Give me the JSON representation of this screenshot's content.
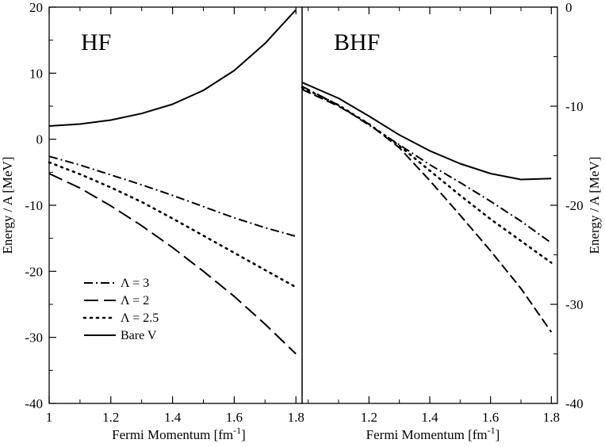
{
  "chart_data": [
    {
      "type": "line",
      "panel_label": "HF",
      "xlabel": "Fermi Momentum [fm",
      "xlabel_sup": "-1",
      "xlabel_end": "]",
      "ylabel": "Energy / A [MeV]",
      "xlim": [
        1.0,
        1.82
      ],
      "ylim": [
        -40,
        20
      ],
      "xticks": [
        1,
        1.2,
        1.4,
        1.6,
        1.8
      ],
      "xtick_labels": [
        "1",
        "1.2",
        "1.4",
        "1.6",
        "1.8"
      ],
      "yticks": [
        -40,
        -30,
        -20,
        -10,
        0,
        10,
        20
      ],
      "ytick_labels": [
        "-40",
        "-30",
        "-20",
        "-10",
        "0",
        "10",
        "20"
      ],
      "y_axis_side": "left",
      "grid": false,
      "legend_position": "bottom-left",
      "series": [
        {
          "name": "Λ = 3",
          "style": "dash-dot",
          "x": [
            1.0,
            1.1,
            1.2,
            1.3,
            1.4,
            1.5,
            1.6,
            1.7,
            1.8
          ],
          "y": [
            -2.6,
            -3.9,
            -5.4,
            -6.9,
            -8.5,
            -10.2,
            -11.9,
            -13.4,
            -14.7
          ]
        },
        {
          "name": "Λ = 2",
          "style": "long-dash",
          "x": [
            1.0,
            1.1,
            1.2,
            1.3,
            1.4,
            1.5,
            1.6,
            1.7,
            1.8
          ],
          "y": [
            -5.2,
            -7.4,
            -10.1,
            -13.1,
            -16.4,
            -20.0,
            -23.8,
            -28.0,
            -32.5
          ]
        },
        {
          "name": "Λ = 2.5",
          "style": "dotted",
          "x": [
            1.0,
            1.1,
            1.2,
            1.3,
            1.4,
            1.5,
            1.6,
            1.7,
            1.8
          ],
          "y": [
            -3.5,
            -5.3,
            -7.3,
            -9.5,
            -12.0,
            -14.6,
            -17.2,
            -19.8,
            -22.4
          ]
        },
        {
          "name": "Bare V",
          "style": "solid",
          "x": [
            1.0,
            1.1,
            1.2,
            1.3,
            1.4,
            1.5,
            1.6,
            1.7,
            1.8
          ],
          "y": [
            2.0,
            2.3,
            2.9,
            3.9,
            5.3,
            7.4,
            10.4,
            14.5,
            19.6
          ]
        }
      ]
    },
    {
      "type": "line",
      "panel_label": "BHF",
      "xlabel": "Fermi Momentum [fm",
      "xlabel_sup": "-1",
      "xlabel_end": "]",
      "ylabel": "Energy / A [MeV]",
      "xlim": [
        0.98,
        1.82
      ],
      "ylim": [
        -40,
        0
      ],
      "xticks": [
        1.2,
        1.4,
        1.6,
        1.8
      ],
      "xtick_labels": [
        "1.2",
        "1.4",
        "1.6",
        "1.8"
      ],
      "yticks": [
        -40,
        -30,
        -20,
        -10,
        0
      ],
      "ytick_labels": [
        "-40",
        "-30",
        "-20",
        "-10",
        "0"
      ],
      "y_axis_side": "right",
      "grid": false,
      "series": [
        {
          "name": "Λ = 3",
          "style": "dash-dot",
          "x": [
            0.98,
            1.1,
            1.2,
            1.3,
            1.4,
            1.5,
            1.6,
            1.7,
            1.8
          ],
          "y": [
            -8.0,
            -9.9,
            -11.9,
            -13.9,
            -15.9,
            -17.7,
            -19.6,
            -21.6,
            -23.8
          ]
        },
        {
          "name": "Λ = 2",
          "style": "dashed",
          "x": [
            0.98,
            1.1,
            1.2,
            1.3,
            1.4,
            1.5,
            1.6,
            1.7,
            1.8
          ],
          "y": [
            -8.3,
            -10.0,
            -11.8,
            -14.2,
            -17.5,
            -21.0,
            -24.6,
            -28.4,
            -32.8
          ]
        },
        {
          "name": "Λ = 2.5",
          "style": "dotted",
          "x": [
            0.98,
            1.1,
            1.2,
            1.3,
            1.4,
            1.5,
            1.6,
            1.7,
            1.8
          ],
          "y": [
            -8.1,
            -9.9,
            -11.8,
            -14.0,
            -16.5,
            -19.0,
            -21.4,
            -23.6,
            -25.8
          ]
        },
        {
          "name": "Bare V",
          "style": "solid",
          "x": [
            0.98,
            1.1,
            1.2,
            1.3,
            1.4,
            1.5,
            1.6,
            1.7,
            1.8
          ],
          "y": [
            -7.6,
            -9.2,
            -11.0,
            -12.9,
            -14.5,
            -15.8,
            -16.8,
            -17.4,
            -17.3
          ]
        }
      ]
    }
  ]
}
